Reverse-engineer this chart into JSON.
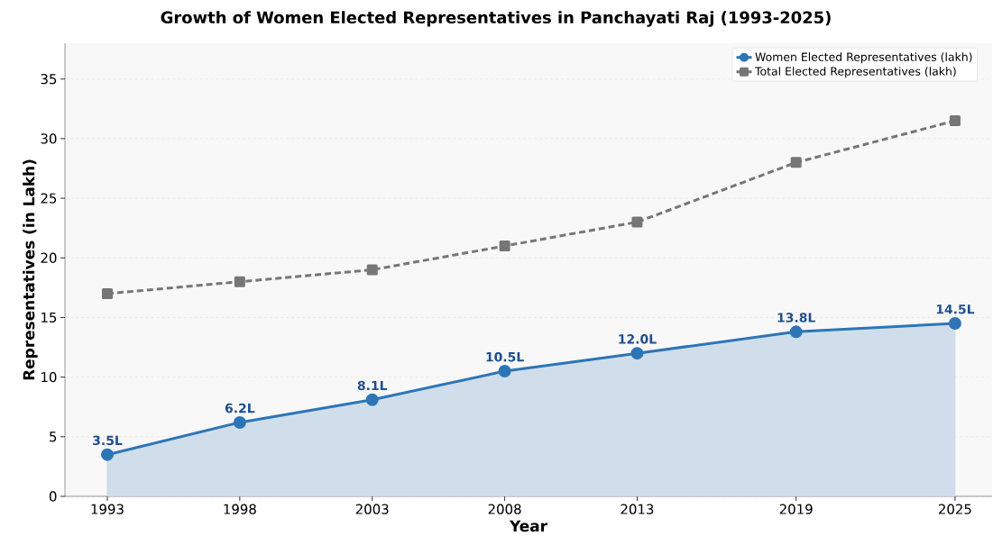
{
  "chart_data": {
    "type": "line",
    "title": "Growth of Women Elected Representatives in Panchayati Raj (1993-2025)",
    "xlabel": "Year",
    "ylabel": "Representatives (in Lakh)",
    "x": [
      1993,
      1998,
      2003,
      2008,
      2013,
      2019,
      2025
    ],
    "series": [
      {
        "name": "Women Elected Representatives (lakh)",
        "type": "area",
        "color": "#2e75b6",
        "marker": "circle",
        "line_style": "solid",
        "values": [
          3.5,
          6.2,
          8.1,
          10.5,
          12.0,
          13.8,
          14.5
        ],
        "value_labels": [
          "3.5L",
          "6.2L",
          "8.1L",
          "10.5L",
          "12.0L",
          "13.8L",
          "14.5L"
        ]
      },
      {
        "name": "Total Elected Representatives (lakh)",
        "color": "#767676",
        "marker": "square",
        "line_style": "dashed",
        "values": [
          17,
          18,
          19,
          21,
          23,
          28,
          31.5
        ]
      }
    ],
    "xlim": [
      1991.4,
      2026.4
    ],
    "ylim": [
      0,
      38
    ],
    "xticks": [
      1993,
      1998,
      2003,
      2008,
      2013,
      2019,
      2025
    ],
    "yticks": [
      0,
      5,
      10,
      15,
      20,
      25,
      30,
      35
    ],
    "grid": "y",
    "legend": "top right"
  }
}
